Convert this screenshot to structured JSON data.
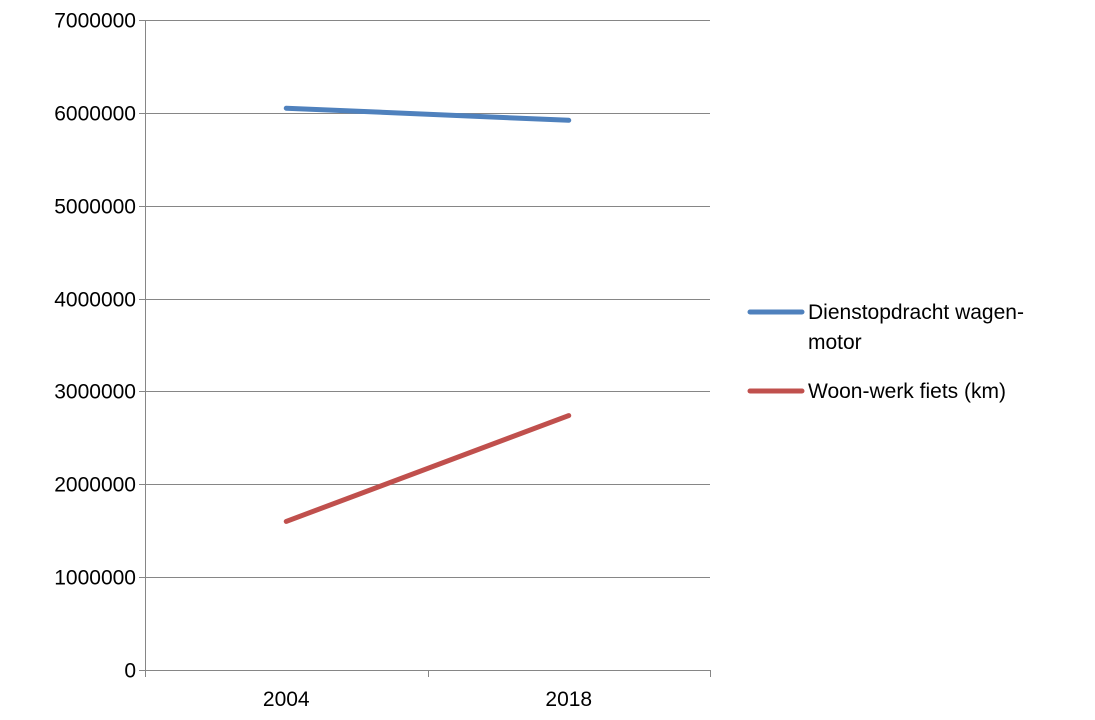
{
  "chart_data": {
    "type": "line",
    "categories": [
      "2004",
      "2018"
    ],
    "series": [
      {
        "name": "Dienstopdracht wagen-motor",
        "legend_lines": [
          "Dienstopdracht wagen-",
          "motor"
        ],
        "values": [
          6050000,
          5920000
        ],
        "color": "#4F81BD"
      },
      {
        "name": "Woon-werk fiets (km)",
        "legend_lines": [
          "Woon-werk fiets (km)"
        ],
        "values": [
          1600000,
          2740000
        ],
        "color": "#C0504D"
      }
    ],
    "y_ticks": [
      "0",
      "1000000",
      "2000000",
      "3000000",
      "4000000",
      "5000000",
      "6000000",
      "7000000"
    ],
    "ylim": [
      0,
      7000000
    ],
    "grid": true,
    "legend_position": "right",
    "gridline_color": "#868686"
  }
}
